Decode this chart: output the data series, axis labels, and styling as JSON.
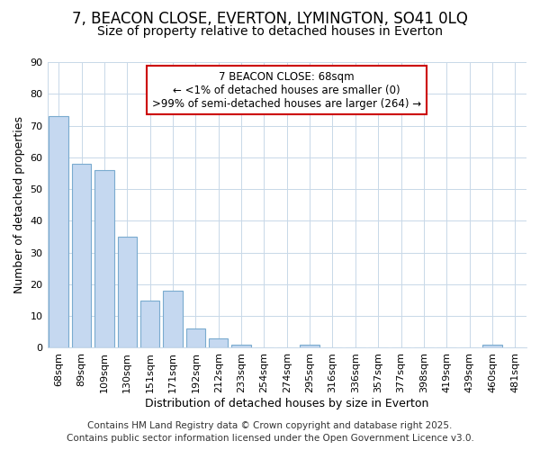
{
  "title": "7, BEACON CLOSE, EVERTON, LYMINGTON, SO41 0LQ",
  "subtitle": "Size of property relative to detached houses in Everton",
  "xlabel": "Distribution of detached houses by size in Everton",
  "ylabel": "Number of detached properties",
  "categories": [
    "68sqm",
    "89sqm",
    "109sqm",
    "130sqm",
    "151sqm",
    "171sqm",
    "192sqm",
    "212sqm",
    "233sqm",
    "254sqm",
    "274sqm",
    "295sqm",
    "316sqm",
    "336sqm",
    "357sqm",
    "377sqm",
    "398sqm",
    "419sqm",
    "439sqm",
    "460sqm",
    "481sqm"
  ],
  "values": [
    73,
    58,
    56,
    35,
    15,
    18,
    6,
    3,
    1,
    0,
    0,
    1,
    0,
    0,
    0,
    0,
    0,
    0,
    0,
    1,
    0
  ],
  "bar_color": "#c5d8f0",
  "bar_edge_color": "#7aabcf",
  "plot_bg_color": "#ffffff",
  "fig_bg_color": "#ffffff",
  "grid_color": "#c8d8e8",
  "ylim": [
    0,
    90
  ],
  "yticks": [
    0,
    10,
    20,
    30,
    40,
    50,
    60,
    70,
    80,
    90
  ],
  "annotation_title": "7 BEACON CLOSE: 68sqm",
  "annotation_line1": "← <1% of detached houses are smaller (0)",
  "annotation_line2": ">99% of semi-detached houses are larger (264) →",
  "annotation_box_color": "#ffffff",
  "annotation_border_color": "#cc0000",
  "footer_line1": "Contains HM Land Registry data © Crown copyright and database right 2025.",
  "footer_line2": "Contains public sector information licensed under the Open Government Licence v3.0.",
  "title_fontsize": 12,
  "subtitle_fontsize": 10,
  "axis_label_fontsize": 9,
  "tick_fontsize": 8,
  "annotation_fontsize": 8.5,
  "footer_fontsize": 7.5
}
